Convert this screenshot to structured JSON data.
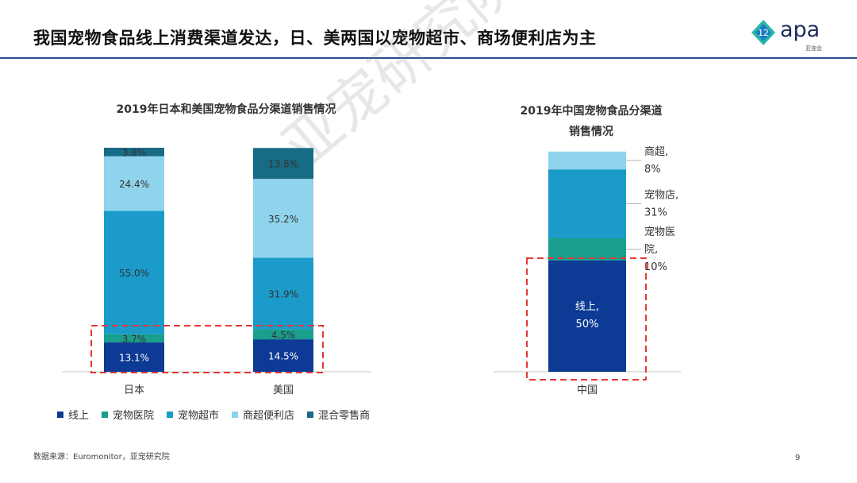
{
  "header": {
    "title": "我国宠物食品线上消费渠道发达，日、美两国以宠物超市、商场便利店为主"
  },
  "logo": {
    "word": "apa",
    "sub": "亚宠会"
  },
  "watermark": "亚宠研究院",
  "colors": {
    "online": "#0d3a94",
    "pet_hospital": "#1a9e8d",
    "pet_store": "#1a9bc9",
    "supermarket": "#8fd3ec",
    "mixed": "#176b85",
    "highlight": "#e53935"
  },
  "chart_data": [
    {
      "type": "bar",
      "stacked": true,
      "title": "2019年日本和美国宠物食品分渠道销售情况",
      "categories": [
        "日本",
        "美国"
      ],
      "series": [
        {
          "name": "线上",
          "values": [
            13.1,
            14.5
          ],
          "labels": [
            "13.1%",
            "14.5%"
          ]
        },
        {
          "name": "宠物医院",
          "values": [
            3.7,
            4.5
          ],
          "labels": [
            "3.7%",
            "4.5%"
          ]
        },
        {
          "name": "宠物超市",
          "values": [
            55.0,
            31.9
          ],
          "labels": [
            "55.0%",
            "31.9%"
          ]
        },
        {
          "name": "商超便利店",
          "values": [
            24.4,
            35.2
          ],
          "labels": [
            "24.4%",
            "35.2%"
          ]
        },
        {
          "name": "混合零售商",
          "values": [
            3.8,
            13.8
          ],
          "labels": [
            "3.8%",
            "13.8%"
          ]
        }
      ],
      "ylim": [
        0,
        100
      ],
      "legend": "bottom"
    },
    {
      "type": "bar",
      "stacked": true,
      "title_line1": "2019年中国宠物食品分渠道",
      "title_line2": "销售情况",
      "categories": [
        "中国"
      ],
      "series": [
        {
          "name": "线上",
          "values": [
            50
          ],
          "label": [
            "线上,",
            "50%"
          ]
        },
        {
          "name": "宠物医院",
          "values": [
            10
          ],
          "label": [
            "宠物医",
            "院,",
            "10%"
          ]
        },
        {
          "name": "宠物店",
          "values": [
            31
          ],
          "label": [
            "宠物店,",
            "31%"
          ]
        },
        {
          "name": "商超",
          "values": [
            8
          ],
          "label": [
            "商超,",
            "8%"
          ]
        }
      ],
      "ylim": [
        0,
        100
      ]
    }
  ],
  "legend": [
    {
      "name": "线上",
      "color_key": "online"
    },
    {
      "name": "宠物医院",
      "color_key": "pet_hospital"
    },
    {
      "name": "宠物超市",
      "color_key": "pet_store"
    },
    {
      "name": "商超便利店",
      "color_key": "supermarket"
    },
    {
      "name": "混合零售商",
      "color_key": "mixed"
    }
  ],
  "footer": {
    "source": "数据来源：Euromonitor，亚宠研究院",
    "page": "9"
  }
}
